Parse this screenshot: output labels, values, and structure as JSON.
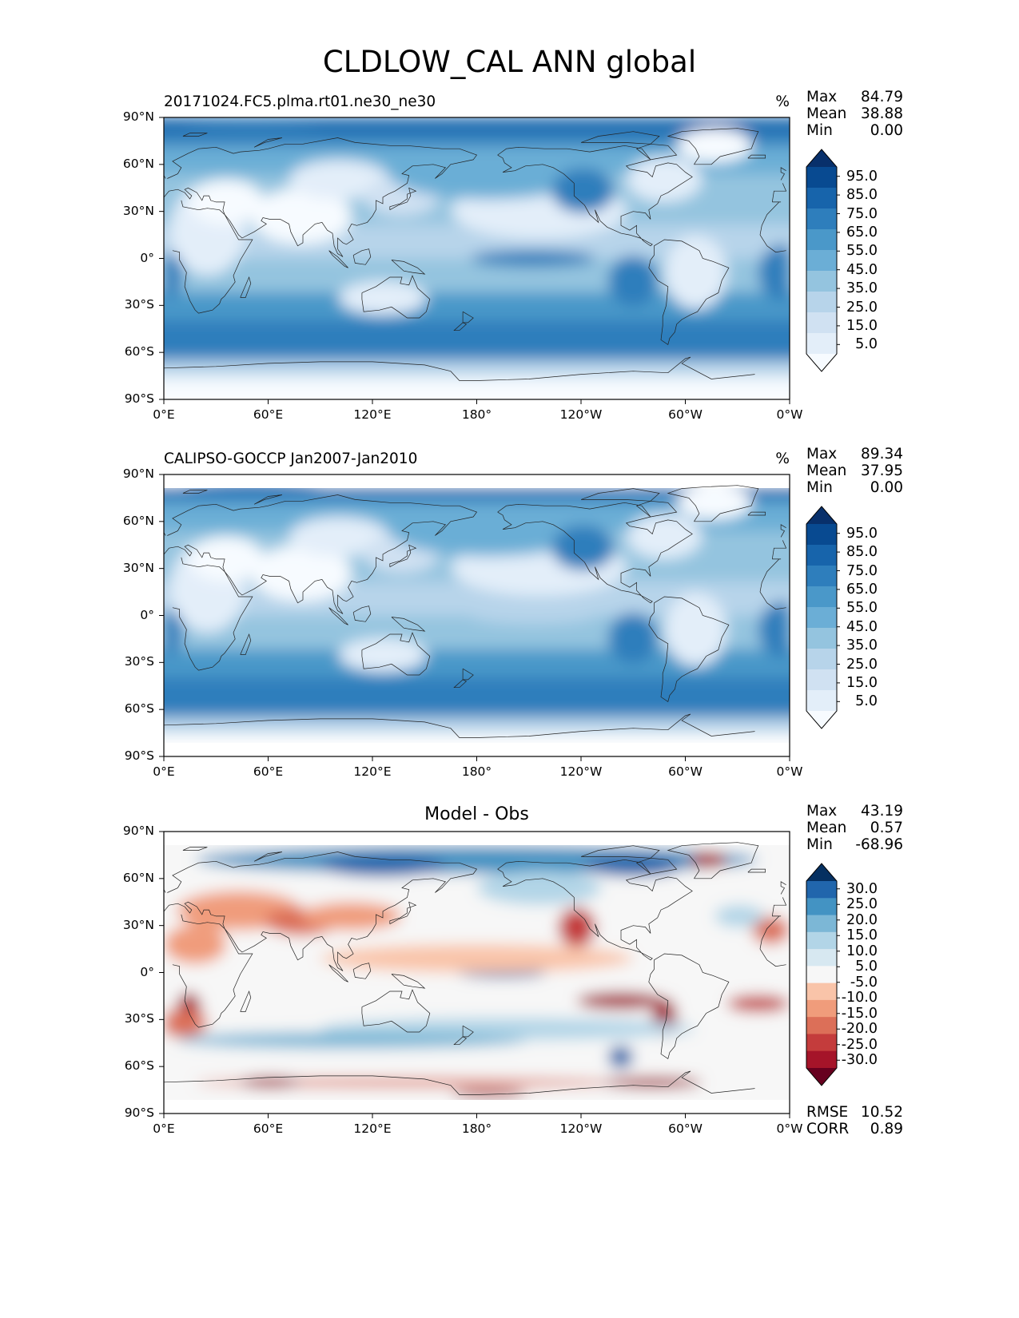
{
  "title": "CLDLOW_CAL ANN global",
  "lat_ticks": [
    "90°N",
    "60°N",
    "30°N",
    "0°",
    "30°S",
    "60°S",
    "90°S"
  ],
  "lon_ticks": [
    "0°E",
    "60°E",
    "120°E",
    "180°",
    "120°W",
    "60°W",
    "0°W"
  ],
  "chart_data": [
    {
      "type": "heatmap",
      "panel": "model",
      "title_left": "20171024.FC5.plma.rt01.ne30_ne30",
      "units": "%",
      "stats": {
        "max_label": "Max",
        "max": "84.79",
        "mean_label": "Mean",
        "mean": "38.88",
        "min_label": "Min",
        "min": "0.00"
      },
      "colorbar_labels": [
        "95.0",
        "85.0",
        "75.0",
        "65.0",
        "55.0",
        "45.0",
        "35.0",
        "25.0",
        "15.0",
        "5.0"
      ],
      "colorbar_colors": [
        "#f7fbff",
        "#e3eef9",
        "#d0e1f2",
        "#b7d4ea",
        "#94c4df",
        "#6baed6",
        "#4a98c9",
        "#2e7ebc",
        "#1764ab",
        "#084a91",
        "#08306b"
      ],
      "xlim": [
        0,
        360
      ],
      "ylim": [
        -90,
        90
      ]
    },
    {
      "type": "heatmap",
      "panel": "obs",
      "title_left": "CALIPSO-GOCCP Jan2007-Jan2010",
      "units": "%",
      "stats": {
        "max_label": "Max",
        "max": "89.34",
        "mean_label": "Mean",
        "mean": "37.95",
        "min_label": "Min",
        "min": "0.00"
      },
      "colorbar_labels": [
        "95.0",
        "85.0",
        "75.0",
        "65.0",
        "55.0",
        "45.0",
        "35.0",
        "25.0",
        "15.0",
        "5.0"
      ],
      "colorbar_colors": [
        "#f7fbff",
        "#e3eef9",
        "#d0e1f2",
        "#b7d4ea",
        "#94c4df",
        "#6baed6",
        "#4a98c9",
        "#2e7ebc",
        "#1764ab",
        "#084a91",
        "#08306b"
      ],
      "xlim": [
        0,
        360
      ],
      "ylim": [
        -90,
        90
      ]
    },
    {
      "type": "heatmap",
      "panel": "diff",
      "title_center": "Model - Obs",
      "stats": {
        "max_label": "Max",
        "max": "43.19",
        "mean_label": "Mean",
        "mean": "0.57",
        "min_label": "Min",
        "min": "-68.96"
      },
      "colorbar_labels": [
        "30.0",
        "25.0",
        "20.0",
        "15.0",
        "10.0",
        "5.0",
        "-5.0",
        "-10.0",
        "-15.0",
        "-20.0",
        "-25.0",
        "-30.0"
      ],
      "colorbar_colors": [
        "#67001f",
        "#a51429",
        "#c43c3c",
        "#dc6f58",
        "#f09c7b",
        "#f9c4a9",
        "#f7f7f7",
        "#d7e8f1",
        "#b2d5e7",
        "#7cb7d6",
        "#4393c3",
        "#2166ac",
        "#053061"
      ],
      "metrics": {
        "rmse_label": "RMSE",
        "rmse": "10.52",
        "corr_label": "CORR",
        "corr": "0.89"
      },
      "xlim": [
        0,
        360
      ],
      "ylim": [
        -90,
        90
      ]
    }
  ]
}
